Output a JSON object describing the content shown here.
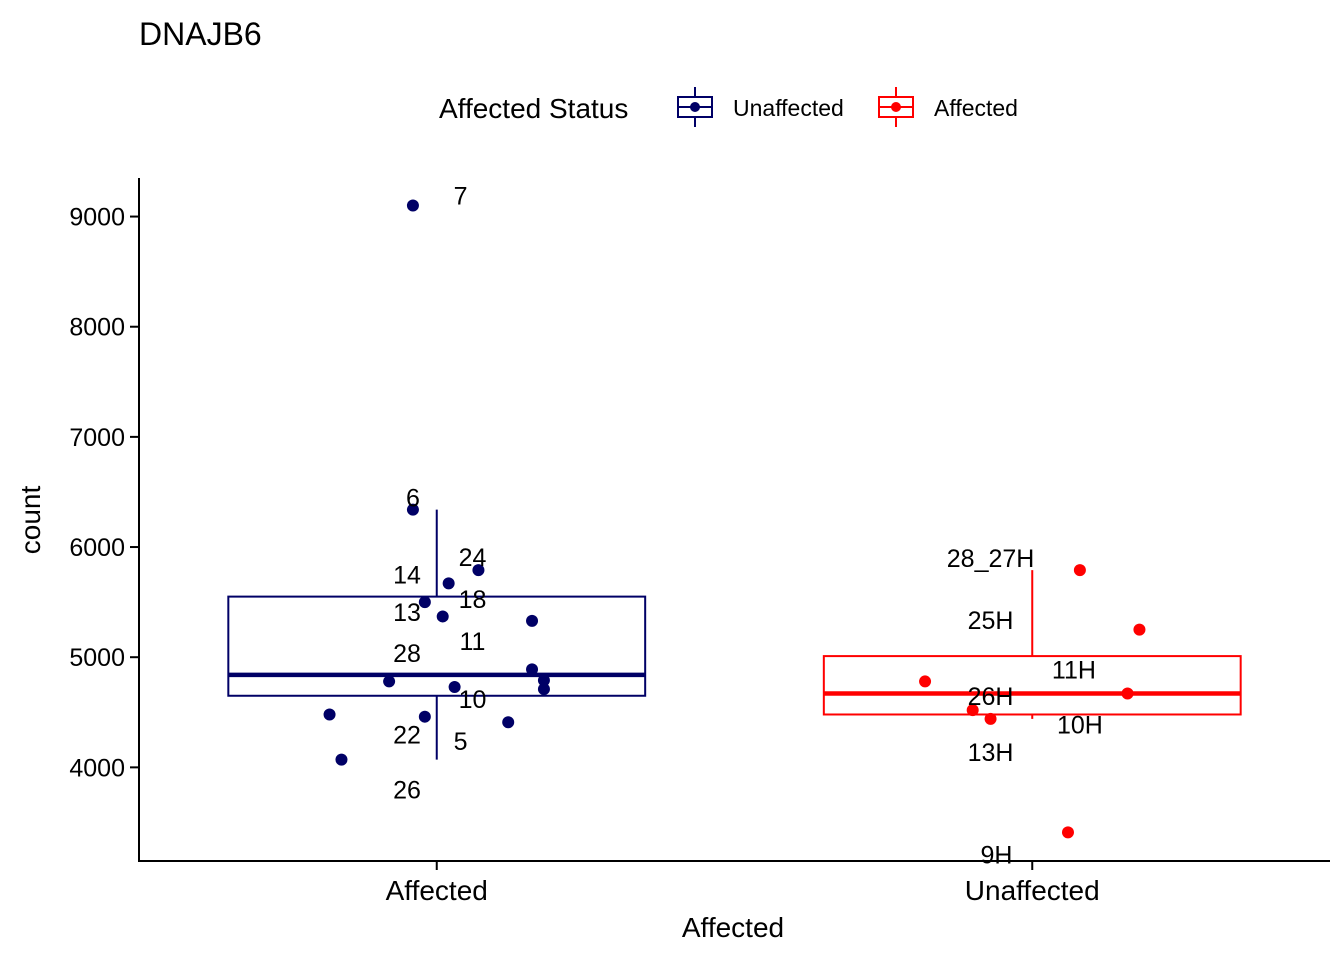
{
  "chart_data": {
    "type": "boxplot",
    "title": "DNAJB6",
    "xlabel": "Affected",
    "ylabel": "count",
    "ylim": [
      3150,
      9350
    ],
    "yticks": [
      4000,
      5000,
      6000,
      7000,
      8000,
      9000
    ],
    "categories": [
      "Affected",
      "Unaffected"
    ],
    "legend": {
      "title": "Affected Status",
      "position": "top",
      "entries": [
        {
          "label": "Unaffected",
          "color": "#000066"
        },
        {
          "label": "Affected",
          "color": "#ff0000"
        }
      ]
    },
    "series": [
      {
        "name": "Unaffected",
        "category": "Affected",
        "color": "#000066",
        "box": {
          "lower_whisker": 4070,
          "q1": 4650,
          "median": 4840,
          "q3": 5550,
          "upper_whisker": 6340
        },
        "points": [
          {
            "jitter": -0.04,
            "y": 9100
          },
          {
            "jitter": -0.04,
            "y": 6340
          },
          {
            "jitter": 0.07,
            "y": 5790
          },
          {
            "jitter": 0.02,
            "y": 5670
          },
          {
            "jitter": -0.02,
            "y": 5500
          },
          {
            "jitter": 0.01,
            "y": 5370
          },
          {
            "jitter": 0.16,
            "y": 5330
          },
          {
            "jitter": 0.16,
            "y": 4890
          },
          {
            "jitter": -0.08,
            "y": 4780
          },
          {
            "jitter": 0.18,
            "y": 4790
          },
          {
            "jitter": 0.03,
            "y": 4730
          },
          {
            "jitter": 0.18,
            "y": 4710
          },
          {
            "jitter": -0.18,
            "y": 4480
          },
          {
            "jitter": -0.02,
            "y": 4460
          },
          {
            "jitter": 0.12,
            "y": 4410
          },
          {
            "jitter": -0.16,
            "y": 4070
          }
        ],
        "labels": [
          {
            "text": "7",
            "jitter": 0.04,
            "y": 9180
          },
          {
            "text": "6",
            "jitter": -0.04,
            "y": 6440
          },
          {
            "text": "24",
            "jitter": 0.06,
            "y": 5900
          },
          {
            "text": "14",
            "jitter": -0.05,
            "y": 5740
          },
          {
            "text": "18",
            "jitter": 0.06,
            "y": 5520
          },
          {
            "text": "13",
            "jitter": -0.05,
            "y": 5400
          },
          {
            "text": "11",
            "jitter": 0.06,
            "y": 5140
          },
          {
            "text": "28",
            "jitter": -0.05,
            "y": 5030
          },
          {
            "text": "10",
            "jitter": 0.06,
            "y": 4610
          },
          {
            "text": "22",
            "jitter": -0.05,
            "y": 4290
          },
          {
            "text": "5",
            "jitter": 0.04,
            "y": 4230
          },
          {
            "text": "26",
            "jitter": -0.05,
            "y": 3790
          }
        ]
      },
      {
        "name": "Affected",
        "category": "Unaffected",
        "color": "#ff0000",
        "box": {
          "lower_whisker": 4440,
          "q1": 4480,
          "median": 4670,
          "q3": 5010,
          "upper_whisker": 5790
        },
        "points": [
          {
            "jitter": 0.08,
            "y": 5790
          },
          {
            "jitter": 0.18,
            "y": 5250
          },
          {
            "jitter": -0.18,
            "y": 4780
          },
          {
            "jitter": 0.16,
            "y": 4670
          },
          {
            "jitter": -0.1,
            "y": 4520
          },
          {
            "jitter": -0.07,
            "y": 4440
          },
          {
            "jitter": 0.06,
            "y": 3410
          }
        ],
        "labels": [
          {
            "text": "28_27H",
            "jitter": -0.07,
            "y": 5890
          },
          {
            "text": "25H",
            "jitter": -0.07,
            "y": 5330
          },
          {
            "text": "11H",
            "jitter": 0.07,
            "y": 4880
          },
          {
            "text": "26H",
            "jitter": -0.07,
            "y": 4640
          },
          {
            "text": "10H",
            "jitter": 0.08,
            "y": 4380
          },
          {
            "text": "13H",
            "jitter": -0.07,
            "y": 4130
          },
          {
            "text": "9H",
            "jitter": -0.06,
            "y": 3200
          }
        ]
      }
    ]
  }
}
